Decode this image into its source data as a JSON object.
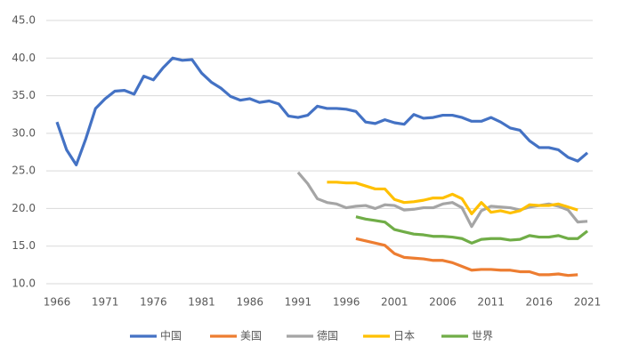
{
  "chart_data": {
    "type": "line",
    "x": [
      1966,
      1967,
      1968,
      1969,
      1970,
      1971,
      1972,
      1973,
      1974,
      1975,
      1976,
      1977,
      1978,
      1979,
      1980,
      1981,
      1982,
      1983,
      1984,
      1985,
      1986,
      1987,
      1988,
      1989,
      1990,
      1991,
      1992,
      1993,
      1994,
      1995,
      1996,
      1997,
      1998,
      1999,
      2000,
      2001,
      2002,
      2003,
      2004,
      2005,
      2006,
      2007,
      2008,
      2009,
      2010,
      2011,
      2012,
      2013,
      2014,
      2015,
      2016,
      2017,
      2018,
      2019,
      2020,
      2021
    ],
    "xlim": [
      1966,
      2021
    ],
    "xticks": [
      1966,
      1971,
      1976,
      1981,
      1986,
      1991,
      1996,
      2001,
      2006,
      2011,
      2016,
      2021
    ],
    "ylim": [
      10,
      45
    ],
    "yticks": [
      {
        "value": 10,
        "label": "10.0"
      },
      {
        "value": 15,
        "label": "15.0"
      },
      {
        "value": 20,
        "label": "20.0"
      },
      {
        "value": 25,
        "label": "25.0"
      },
      {
        "value": 30,
        "label": "30.0"
      },
      {
        "value": 35,
        "label": "35.0"
      },
      {
        "value": 40,
        "label": "40.0"
      },
      {
        "value": 45,
        "label": "45.0"
      }
    ],
    "grid": true,
    "legend": "bottom",
    "series": [
      {
        "name": "中国",
        "color": "#4472c4",
        "values": [
          31.5,
          27.8,
          25.8,
          29.3,
          33.3,
          34.6,
          35.6,
          35.7,
          35.2,
          37.6,
          37.1,
          38.7,
          40.0,
          39.7,
          39.8,
          38.0,
          36.8,
          36.0,
          34.9,
          34.4,
          34.6,
          34.1,
          34.3,
          33.9,
          32.3,
          32.1,
          32.4,
          33.6,
          33.3,
          33.3,
          33.2,
          32.9,
          31.5,
          31.3,
          31.8,
          31.4,
          31.2,
          32.5,
          32.0,
          32.1,
          32.4,
          32.4,
          32.1,
          31.6,
          31.6,
          32.1,
          31.5,
          30.7,
          30.4,
          29.0,
          28.1,
          28.1,
          27.8,
          26.8,
          26.3,
          27.4
        ]
      },
      {
        "name": "美国",
        "color": "#ed7d31",
        "values": [
          null,
          null,
          null,
          null,
          null,
          null,
          null,
          null,
          null,
          null,
          null,
          null,
          null,
          null,
          null,
          null,
          null,
          null,
          null,
          null,
          null,
          null,
          null,
          null,
          null,
          null,
          null,
          null,
          null,
          null,
          null,
          16.0,
          15.7,
          15.4,
          15.1,
          14.0,
          13.5,
          13.4,
          13.3,
          13.1,
          13.1,
          12.8,
          12.3,
          11.8,
          11.9,
          11.9,
          11.8,
          11.8,
          11.6,
          11.6,
          11.2,
          11.2,
          11.3,
          11.1,
          11.2,
          null
        ]
      },
      {
        "name": "德国",
        "color": "#a5a5a5",
        "values": [
          null,
          null,
          null,
          null,
          null,
          null,
          null,
          null,
          null,
          null,
          null,
          null,
          null,
          null,
          null,
          null,
          null,
          null,
          null,
          null,
          null,
          null,
          null,
          null,
          null,
          24.8,
          23.3,
          21.3,
          20.8,
          20.6,
          20.1,
          20.3,
          20.4,
          20.0,
          20.5,
          20.4,
          19.8,
          19.9,
          20.1,
          20.1,
          20.6,
          20.8,
          20.1,
          17.6,
          19.7,
          20.3,
          20.2,
          20.1,
          19.8,
          20.2,
          20.4,
          20.6,
          20.3,
          19.8,
          18.2,
          18.3
        ]
      },
      {
        "name": "日本",
        "color": "#ffc000",
        "values": [
          null,
          null,
          null,
          null,
          null,
          null,
          null,
          null,
          null,
          null,
          null,
          null,
          null,
          null,
          null,
          null,
          null,
          null,
          null,
          null,
          null,
          null,
          null,
          null,
          null,
          null,
          null,
          null,
          23.5,
          23.5,
          23.4,
          23.4,
          23.0,
          22.6,
          22.6,
          21.2,
          20.8,
          20.9,
          21.1,
          21.4,
          21.4,
          21.9,
          21.3,
          19.3,
          20.8,
          19.5,
          19.7,
          19.4,
          19.7,
          20.5,
          20.4,
          20.4,
          20.6,
          20.2,
          19.8,
          null
        ]
      },
      {
        "name": "世界",
        "color": "#70ad47",
        "values": [
          null,
          null,
          null,
          null,
          null,
          null,
          null,
          null,
          null,
          null,
          null,
          null,
          null,
          null,
          null,
          null,
          null,
          null,
          null,
          null,
          null,
          null,
          null,
          null,
          null,
          null,
          null,
          null,
          null,
          null,
          null,
          18.9,
          18.6,
          18.4,
          18.2,
          17.2,
          16.9,
          16.6,
          16.5,
          16.3,
          16.3,
          16.2,
          16.0,
          15.4,
          15.9,
          16.0,
          16.0,
          15.8,
          15.9,
          16.4,
          16.2,
          16.2,
          16.4,
          16.0,
          16.0,
          17.0
        ]
      }
    ]
  }
}
